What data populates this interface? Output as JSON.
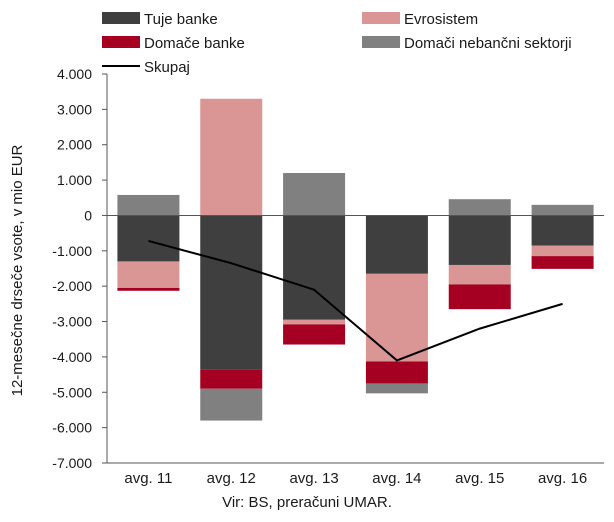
{
  "chart_data": {
    "type": "bar",
    "stacked": true,
    "categories": [
      "avg. 11",
      "avg. 12",
      "avg. 13",
      "avg. 14",
      "avg. 15",
      "avg. 16"
    ],
    "series": [
      {
        "name": "Tuje banke",
        "kind": "bar",
        "color": "#3f3f3f",
        "values": [
          -1300,
          -4350,
          -2950,
          -1650,
          -1400,
          -850
        ]
      },
      {
        "name": "Evrosistem",
        "kind": "bar",
        "color": "#d99694",
        "values": [
          -750,
          3300,
          -130,
          -2480,
          -550,
          -300
        ]
      },
      {
        "name": "Domače banke",
        "kind": "bar",
        "color": "#a50021",
        "values": [
          -80,
          -550,
          -570,
          -620,
          -700,
          -360
        ]
      },
      {
        "name": "Domači nebančni sektorji",
        "kind": "bar",
        "color": "#808080",
        "values": [
          580,
          -900,
          1200,
          -280,
          460,
          300
        ]
      },
      {
        "name": "Skupaj",
        "kind": "line",
        "color": "#000000",
        "values": [
          -720,
          -1350,
          -2100,
          -4100,
          -3200,
          -2500
        ]
      }
    ],
    "ylabel": "12-mesečne drseče vsote, v mio EUR",
    "ylim": [
      -7000,
      4000
    ],
    "yticks": [
      4000,
      3000,
      2000,
      1000,
      0,
      -1000,
      -2000,
      -3000,
      -4000,
      -5000,
      -6000,
      -7000
    ],
    "ytick_labels": [
      "4.000",
      "3.000",
      "2.000",
      "1.000",
      "0",
      "-1.000",
      "-2.000",
      "-3.000",
      "-4.000",
      "-5.000",
      "-6.000",
      "-7.000"
    ],
    "legend_position": "top",
    "grid": false
  },
  "source_note": "Vir: BS, preračuni UMAR."
}
